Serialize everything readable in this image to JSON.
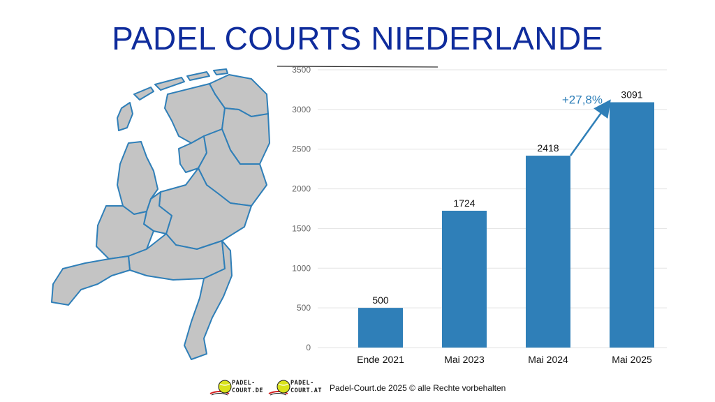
{
  "title": "PADEL COURTS NIEDERLANDE",
  "footer": {
    "copyright": "Padel-Court.de 2025 © alle Rechte vorbehalten",
    "logos": [
      {
        "line1": "PADEL-",
        "line2": "COURT.DE"
      },
      {
        "line1": "PADEL-",
        "line2": "COURT.AT"
      }
    ]
  },
  "colors": {
    "title": "#0f2c9c",
    "bar": "#2f7fb8",
    "map_fill": "#c4c4c4",
    "map_stroke": "#2f7fb8",
    "growth": "#2f7fb8"
  },
  "chart_data": {
    "type": "bar",
    "categories": [
      "Ende 2021",
      "Mai 2023",
      "Mai 2024",
      "Mai 2025"
    ],
    "values": [
      500,
      1724,
      2418,
      3091
    ],
    "value_labels": [
      "500",
      "1724",
      "2418",
      "3091"
    ],
    "yticks": [
      0,
      500,
      1000,
      1500,
      2000,
      2500,
      3000,
      3500
    ],
    "ylim": [
      0,
      3500
    ],
    "grid": true,
    "annotation": {
      "text": "+27,8%",
      "from_index": 2,
      "to_index": 3
    }
  }
}
